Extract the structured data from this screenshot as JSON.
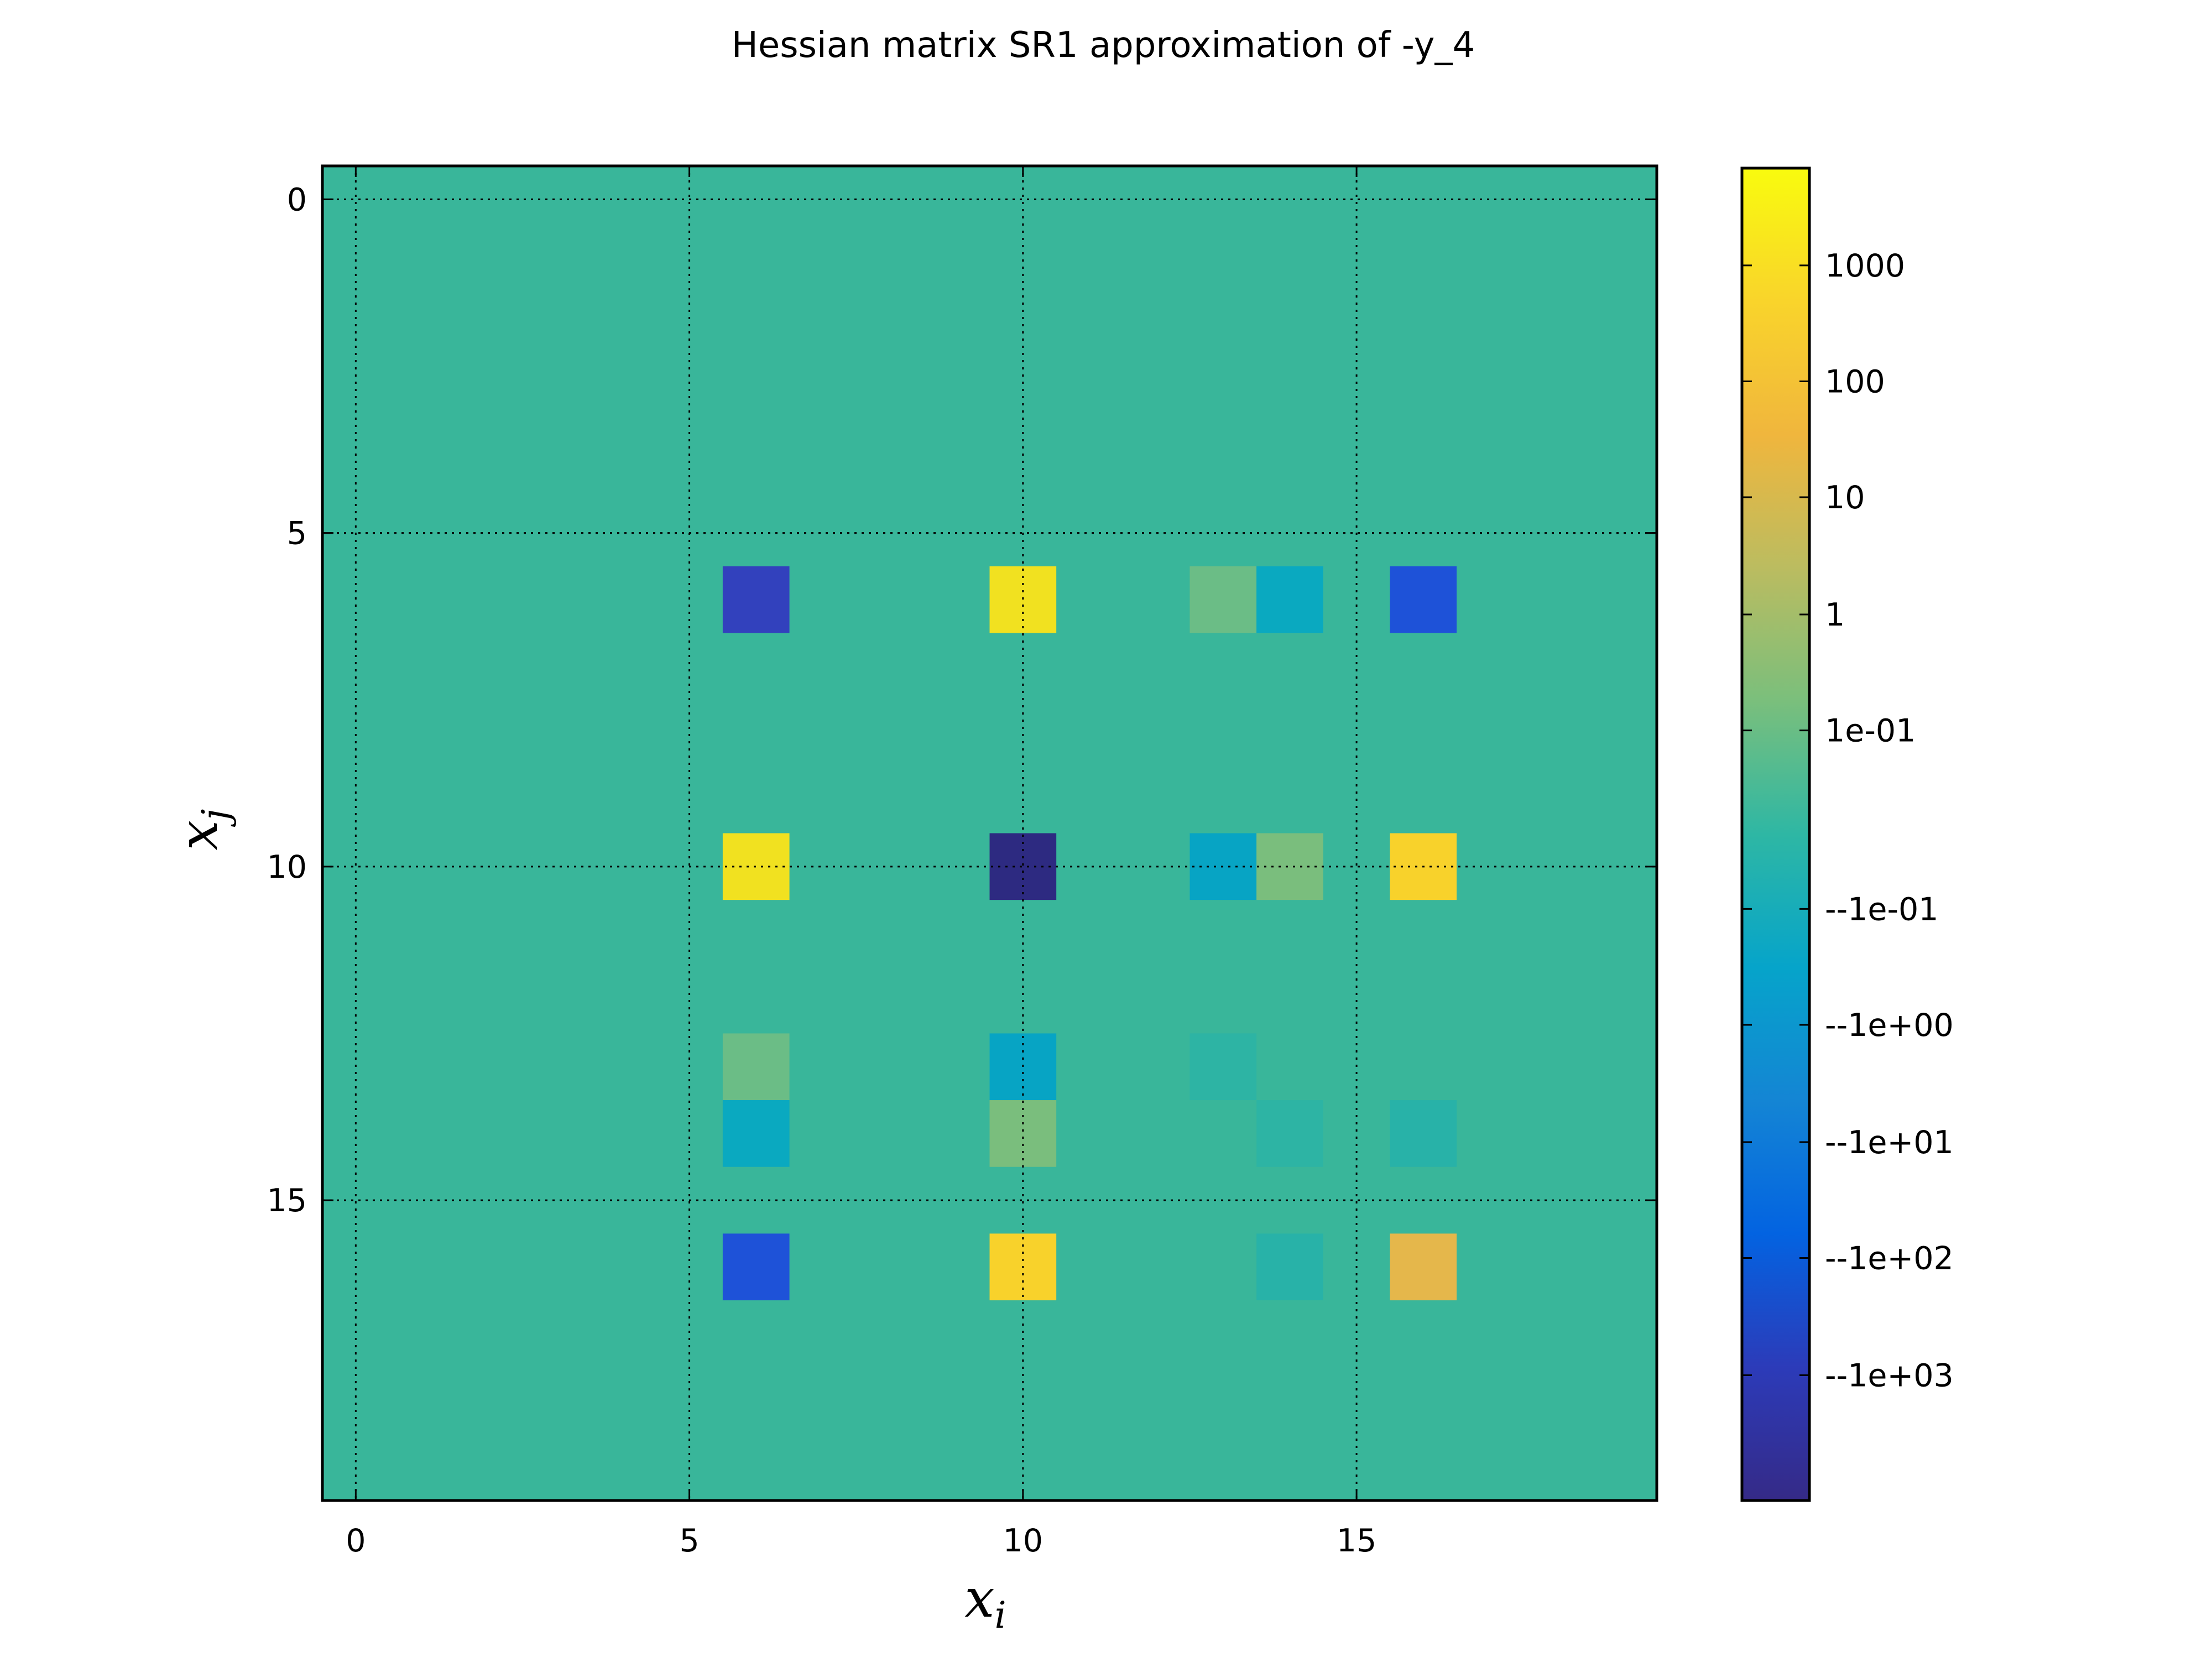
{
  "chart_data": {
    "type": "heatmap",
    "title": "Hessian matrix SR1 approximation of -y_4",
    "xlabel": "x",
    "xlabel_sub": "i",
    "ylabel": "x",
    "ylabel_sub": "j",
    "size": 20,
    "xlim": [
      -0.5,
      19.5
    ],
    "ylim": [
      -0.5,
      19.5
    ],
    "y_inverted": true,
    "grid": true,
    "x_ticks": [
      0,
      5,
      10,
      15
    ],
    "y_ticks": [
      0,
      5,
      10,
      15
    ],
    "background_value": 0,
    "background_color": "#39b69a",
    "cells": [
      {
        "row": 6,
        "col": 6,
        "color": "#3241bd"
      },
      {
        "row": 6,
        "col": 10,
        "color": "#f1e120"
      },
      {
        "row": 6,
        "col": 13,
        "color": "#6bbd86"
      },
      {
        "row": 6,
        "col": 14,
        "color": "#0aa9c0"
      },
      {
        "row": 6,
        "col": 16,
        "color": "#1e52d8"
      },
      {
        "row": 10,
        "col": 6,
        "color": "#f1e120"
      },
      {
        "row": 10,
        "col": 10,
        "color": "#2d2a81"
      },
      {
        "row": 10,
        "col": 13,
        "color": "#07a4c4"
      },
      {
        "row": 10,
        "col": 14,
        "color": "#7abe7d"
      },
      {
        "row": 10,
        "col": 16,
        "color": "#f8d22b"
      },
      {
        "row": 13,
        "col": 6,
        "color": "#6bbd86"
      },
      {
        "row": 13,
        "col": 10,
        "color": "#07a4c4"
      },
      {
        "row": 13,
        "col": 13,
        "color": "#2db4a4"
      },
      {
        "row": 14,
        "col": 6,
        "color": "#0aa9c0"
      },
      {
        "row": 14,
        "col": 10,
        "color": "#7abe7d"
      },
      {
        "row": 14,
        "col": 14,
        "color": "#2db4a4"
      },
      {
        "row": 14,
        "col": 16,
        "color": "#28b2a8"
      },
      {
        "row": 16,
        "col": 6,
        "color": "#1e52d8"
      },
      {
        "row": 16,
        "col": 10,
        "color": "#f8d22b"
      },
      {
        "row": 16,
        "col": 14,
        "color": "#28b2a8"
      },
      {
        "row": 16,
        "col": 16,
        "color": "#e5b74b"
      }
    ],
    "colorbar": {
      "colormap": "parula",
      "colors": [
        "#352a87",
        "#2c3bb9",
        "#0363e1",
        "#1485d4",
        "#06a4ca",
        "#2eb7a4",
        "#7abf7c",
        "#bbbc60",
        "#f0b63d",
        "#f9d42b",
        "#f9fb0e"
      ],
      "tick_labels": [
        "1000",
        "100",
        "10",
        "1",
        "1e-01",
        "--1e-01",
        "--1e+00",
        "--1e+01",
        "--1e+02",
        "--1e+03"
      ],
      "tick_fractions": [
        0.927,
        0.84,
        0.753,
        0.665,
        0.578,
        0.444,
        0.357,
        0.269,
        0.182,
        0.094
      ]
    }
  }
}
